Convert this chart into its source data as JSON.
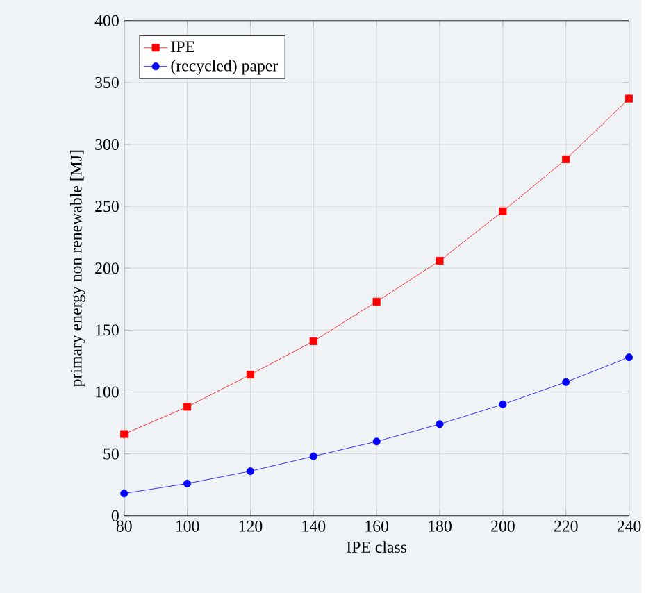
{
  "chart_data": {
    "type": "line",
    "xlabel": "IPE class",
    "ylabel": "primary energy non renewable [MJ]",
    "x": [
      80,
      100,
      120,
      140,
      160,
      180,
      200,
      220,
      240
    ],
    "series": [
      {
        "name": "IPE",
        "color": "#ff0000",
        "marker": "square",
        "values": [
          66,
          88,
          114,
          141,
          173,
          206,
          246,
          288,
          337
        ]
      },
      {
        "name": "(recycled) paper",
        "color": "#0000ff",
        "marker": "circle",
        "values": [
          18,
          26,
          36,
          48,
          60,
          74,
          90,
          108,
          128
        ]
      }
    ],
    "xlim": [
      80,
      240
    ],
    "ylim": [
      0,
      400
    ],
    "xticks": [
      80,
      100,
      120,
      140,
      160,
      180,
      200,
      220,
      240
    ],
    "yticks": [
      0,
      50,
      100,
      150,
      200,
      250,
      300,
      350,
      400
    ],
    "grid": true,
    "legend": "top left",
    "line_style": "solid"
  }
}
